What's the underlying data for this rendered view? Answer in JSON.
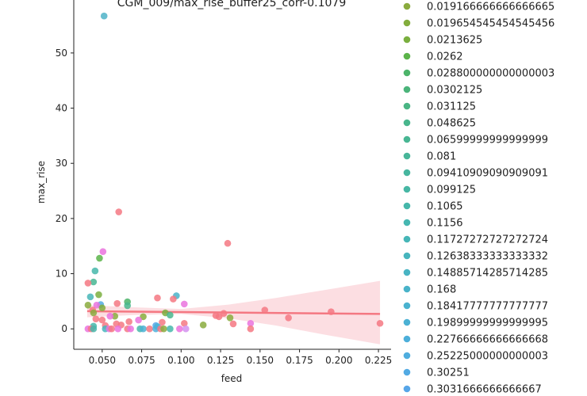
{
  "chart_data": {
    "type": "scatter",
    "title": "CGM_009/max_rise_buffer25_corr-0.1079",
    "xlabel": "feed",
    "ylabel": "max_rise",
    "xlim": [
      0.032,
      0.233
    ],
    "ylim": [
      -3.7,
      59.6
    ],
    "x_ticks": [
      0.05,
      0.075,
      0.1,
      0.125,
      0.15,
      0.175,
      0.2,
      0.225
    ],
    "x_tick_labels": [
      "0.050",
      "0.075",
      "0.100",
      "0.125",
      "0.150",
      "0.175",
      "0.200",
      "0.225"
    ],
    "y_ticks": [
      0,
      10,
      20,
      30,
      40,
      50
    ],
    "y_tick_labels": [
      "0",
      "10",
      "20",
      "30",
      "40",
      "50"
    ],
    "grid": false,
    "legend_position": "right",
    "legend": [
      {
        "label": "0.019166666666666665",
        "color": "#8aab3e"
      },
      {
        "label": "0.019654545454545456",
        "color": "#83ad3d"
      },
      {
        "label": "0.0213625",
        "color": "#7aaf3f"
      },
      {
        "label": "0.0262",
        "color": "#5cb44a"
      },
      {
        "label": "0.028800000000000003",
        "color": "#4cb46a"
      },
      {
        "label": "0.0302125",
        "color": "#4bb47a"
      },
      {
        "label": "0.031125",
        "color": "#4ab584"
      },
      {
        "label": "0.048625",
        "color": "#49b68d"
      },
      {
        "label": "0.06599999999999999",
        "color": "#48b693"
      },
      {
        "label": "0.081",
        "color": "#48b699"
      },
      {
        "label": "0.09410909090909091",
        "color": "#47b69f"
      },
      {
        "label": "0.099125",
        "color": "#47b7a4"
      },
      {
        "label": "0.1065",
        "color": "#46b7aa"
      },
      {
        "label": "0.1156",
        "color": "#46b7b1"
      },
      {
        "label": "0.11727272727272724",
        "color": "#46b6b7"
      },
      {
        "label": "0.12638333333333332",
        "color": "#47b5bd"
      },
      {
        "label": "0.14885714285714285",
        "color": "#48b4c3"
      },
      {
        "label": "0.168",
        "color": "#49b3c9"
      },
      {
        "label": "0.18417777777777777",
        "color": "#4ab2cf"
      },
      {
        "label": "0.19899999999999995",
        "color": "#4bb1d4"
      },
      {
        "label": "0.22766666666666668",
        "color": "#4dafda"
      },
      {
        "label": "0.25225000000000003",
        "color": "#4fadde"
      },
      {
        "label": "0.30251",
        "color": "#52aae3"
      },
      {
        "label": "0.3031666666666667",
        "color": "#57a6e8"
      }
    ],
    "regression": {
      "color": "#f47882",
      "band_color": "#fbd3d8",
      "line": [
        [
          0.0405,
          3.2
        ],
        [
          0.226,
          2.7
        ]
      ],
      "band_upper": [
        [
          0.0405,
          4.3
        ],
        [
          0.07,
          3.9
        ],
        [
          0.1,
          3.6
        ],
        [
          0.13,
          4.4
        ],
        [
          0.16,
          5.6
        ],
        [
          0.19,
          7.0
        ],
        [
          0.226,
          8.7
        ]
      ],
      "band_lower": [
        [
          0.0405,
          2.1
        ],
        [
          0.07,
          2.5
        ],
        [
          0.1,
          2.7
        ],
        [
          0.13,
          1.9
        ],
        [
          0.16,
          0.6
        ],
        [
          0.19,
          -1.0
        ],
        [
          0.226,
          -2.8
        ]
      ]
    },
    "points": [
      {
        "x": 0.0512,
        "y": 56.7,
        "color": "#4fb3c8"
      },
      {
        "x": 0.0605,
        "y": 21.2,
        "color": "#f47882"
      },
      {
        "x": 0.1295,
        "y": 15.5,
        "color": "#f47882"
      },
      {
        "x": 0.0505,
        "y": 14.0,
        "color": "#ea73de"
      },
      {
        "x": 0.0483,
        "y": 12.8,
        "color": "#5cb44a"
      },
      {
        "x": 0.0455,
        "y": 10.5,
        "color": "#46b7aa"
      },
      {
        "x": 0.0445,
        "y": 8.5,
        "color": "#48b693"
      },
      {
        "x": 0.041,
        "y": 8.3,
        "color": "#f47882"
      },
      {
        "x": 0.0478,
        "y": 6.2,
        "color": "#7aaf3f"
      },
      {
        "x": 0.0425,
        "y": 5.8,
        "color": "#46b6b7"
      },
      {
        "x": 0.085,
        "y": 5.6,
        "color": "#f47882"
      },
      {
        "x": 0.097,
        "y": 6.0,
        "color": "#49b3c9"
      },
      {
        "x": 0.095,
        "y": 5.4,
        "color": "#f47882"
      },
      {
        "x": 0.066,
        "y": 4.9,
        "color": "#4cb46a"
      },
      {
        "x": 0.066,
        "y": 4.2,
        "color": "#49b68d"
      },
      {
        "x": 0.0595,
        "y": 4.6,
        "color": "#f47882"
      },
      {
        "x": 0.102,
        "y": 4.5,
        "color": "#ea73de"
      },
      {
        "x": 0.049,
        "y": 4.4,
        "color": "#52aae3"
      },
      {
        "x": 0.0465,
        "y": 4.3,
        "color": "#ea73de"
      },
      {
        "x": 0.041,
        "y": 4.3,
        "color": "#8aab3e"
      },
      {
        "x": 0.05,
        "y": 3.8,
        "color": "#83ad3d"
      },
      {
        "x": 0.044,
        "y": 3.4,
        "color": "#f47882"
      },
      {
        "x": 0.0445,
        "y": 2.9,
        "color": "#8aab3e"
      },
      {
        "x": 0.153,
        "y": 3.4,
        "color": "#f47882"
      },
      {
        "x": 0.195,
        "y": 3.1,
        "color": "#f47882"
      },
      {
        "x": 0.127,
        "y": 2.8,
        "color": "#f47882"
      },
      {
        "x": 0.09,
        "y": 2.9,
        "color": "#7aaf3f"
      },
      {
        "x": 0.093,
        "y": 2.5,
        "color": "#49b68d"
      },
      {
        "x": 0.122,
        "y": 2.4,
        "color": "#f47882"
      },
      {
        "x": 0.124,
        "y": 2.2,
        "color": "#f47882"
      },
      {
        "x": 0.131,
        "y": 2.0,
        "color": "#8aab3e"
      },
      {
        "x": 0.168,
        "y": 2.0,
        "color": "#f47882"
      },
      {
        "x": 0.058,
        "y": 2.3,
        "color": "#8aab3e"
      },
      {
        "x": 0.055,
        "y": 2.3,
        "color": "#ea73de"
      },
      {
        "x": 0.076,
        "y": 2.2,
        "color": "#8aab3e"
      },
      {
        "x": 0.046,
        "y": 1.8,
        "color": "#f47882"
      },
      {
        "x": 0.05,
        "y": 1.6,
        "color": "#f47882"
      },
      {
        "x": 0.073,
        "y": 1.6,
        "color": "#ea73de"
      },
      {
        "x": 0.067,
        "y": 1.3,
        "color": "#f47882"
      },
      {
        "x": 0.088,
        "y": 1.2,
        "color": "#f47882"
      },
      {
        "x": 0.102,
        "y": 1.0,
        "color": "#f47882"
      },
      {
        "x": 0.133,
        "y": 0.9,
        "color": "#f47882"
      },
      {
        "x": 0.144,
        "y": 1.0,
        "color": "#ea73de"
      },
      {
        "x": 0.226,
        "y": 1.0,
        "color": "#f47882"
      },
      {
        "x": 0.114,
        "y": 0.7,
        "color": "#8aab3e"
      },
      {
        "x": 0.059,
        "y": 0.9,
        "color": "#f47882"
      },
      {
        "x": 0.062,
        "y": 0.7,
        "color": "#f47882"
      },
      {
        "x": 0.052,
        "y": 0.6,
        "color": "#f47882"
      },
      {
        "x": 0.0445,
        "y": 0.5,
        "color": "#46b7aa"
      },
      {
        "x": 0.084,
        "y": 0.6,
        "color": "#57a6e8"
      },
      {
        "x": 0.085,
        "y": 0.4,
        "color": "#4bb1d4"
      },
      {
        "x": 0.041,
        "y": 0.0,
        "color": "#ea73de"
      },
      {
        "x": 0.043,
        "y": 0.0,
        "color": "#f47882"
      },
      {
        "x": 0.0445,
        "y": 0.0,
        "color": "#46b7aa"
      },
      {
        "x": 0.052,
        "y": 0.0,
        "color": "#47b5bd"
      },
      {
        "x": 0.0545,
        "y": 0.0,
        "color": "#ea73de"
      },
      {
        "x": 0.056,
        "y": 0.0,
        "color": "#f47882"
      },
      {
        "x": 0.06,
        "y": 0.0,
        "color": "#ea73de"
      },
      {
        "x": 0.066,
        "y": 0.0,
        "color": "#f47882"
      },
      {
        "x": 0.068,
        "y": 0.0,
        "color": "#ea73de"
      },
      {
        "x": 0.074,
        "y": 0.0,
        "color": "#46b7aa"
      },
      {
        "x": 0.076,
        "y": 0.0,
        "color": "#4bb1d4"
      },
      {
        "x": 0.08,
        "y": 0.0,
        "color": "#f47882"
      },
      {
        "x": 0.084,
        "y": 0.0,
        "color": "#4dafda"
      },
      {
        "x": 0.087,
        "y": 0.0,
        "color": "#f47882"
      },
      {
        "x": 0.089,
        "y": 0.0,
        "color": "#8aab3e"
      },
      {
        "x": 0.093,
        "y": 0.0,
        "color": "#46b7aa"
      },
      {
        "x": 0.099,
        "y": 0.0,
        "color": "#ea73de"
      },
      {
        "x": 0.103,
        "y": 0.0,
        "color": "#d490ee"
      },
      {
        "x": 0.144,
        "y": 0.0,
        "color": "#f47882"
      }
    ]
  }
}
